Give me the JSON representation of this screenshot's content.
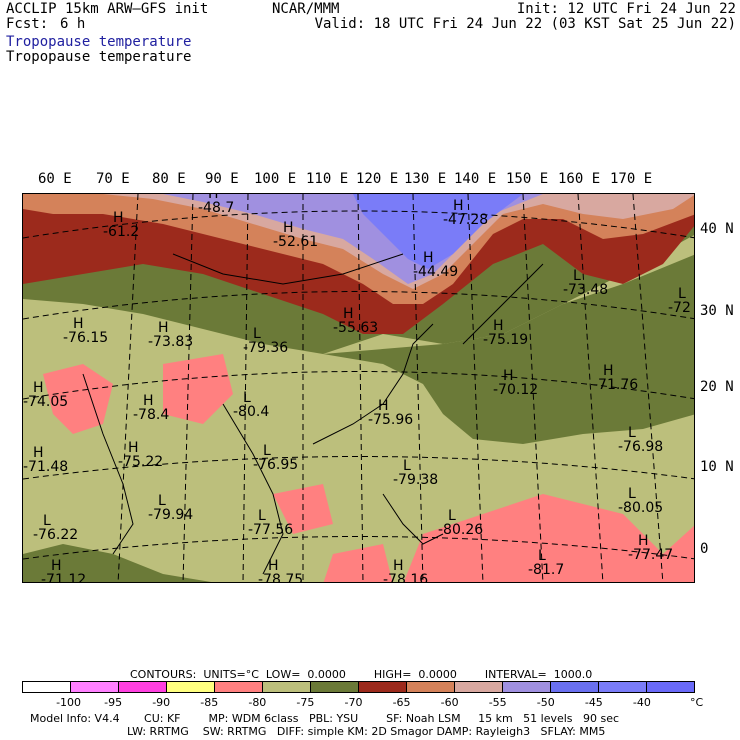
{
  "header": {
    "model_line": "ACCLIP 15km ARW–GFS init",
    "fcst_label": "Fcst:",
    "fcst_value": "6 h",
    "org": "NCAR/MMM",
    "init": "Init: 12 UTC Fri 24 Jun 22",
    "valid": "Valid: 18 UTC Fri 24 Jun 22 (03 KST Sat 25 Jun 22)",
    "field_1": "Tropopause temperature",
    "field_2": "Tropopause temperature",
    "field_1_color": "#2020a0"
  },
  "axes": {
    "lon_labels": [
      "60 E",
      "70 E",
      "80 E",
      "90 E",
      "100 E",
      "110 E",
      "120 E",
      "130 E",
      "140 E",
      "150 E",
      "160 E",
      "170 E"
    ],
    "lat_labels": [
      "40 N",
      "30 N",
      "20 N",
      "10 N",
      "0"
    ]
  },
  "map_annotations": [
    {
      "kind": "H",
      "value": "-48.7"
    },
    {
      "kind": "H",
      "value": "-61.2"
    },
    {
      "kind": "H",
      "value": "-52.61"
    },
    {
      "kind": "H",
      "value": "-47.28"
    },
    {
      "kind": "H",
      "value": "-44.49"
    },
    {
      "kind": "L",
      "value": "-73.48"
    },
    {
      "kind": "L",
      "value": "-72"
    },
    {
      "kind": "H",
      "value": "-55.63"
    },
    {
      "kind": "H",
      "value": "-76.15"
    },
    {
      "kind": "H",
      "value": "-73.83"
    },
    {
      "kind": "L",
      "value": "-79.36"
    },
    {
      "kind": "H",
      "value": "-75.19"
    },
    {
      "kind": "H",
      "value": "-70.12"
    },
    {
      "kind": "H",
      "value": "-71.76"
    },
    {
      "kind": "H",
      "value": "-74.05"
    },
    {
      "kind": "H",
      "value": "-78.4"
    },
    {
      "kind": "L",
      "value": "-80.4"
    },
    {
      "kind": "H",
      "value": "-75.96"
    },
    {
      "kind": "L",
      "value": "-76.98"
    },
    {
      "kind": "H",
      "value": "-71.48"
    },
    {
      "kind": "H",
      "value": "-75.22"
    },
    {
      "kind": "L",
      "value": "-76.95"
    },
    {
      "kind": "L",
      "value": "-79.38"
    },
    {
      "kind": "L",
      "value": "-79.94"
    },
    {
      "kind": "L",
      "value": "-77.56"
    },
    {
      "kind": "L",
      "value": "-80.26"
    },
    {
      "kind": "L",
      "value": "-80.05"
    },
    {
      "kind": "L",
      "value": "-76.22"
    },
    {
      "kind": "H",
      "value": "-77.47"
    },
    {
      "kind": "H",
      "value": "-71.12"
    },
    {
      "kind": "H",
      "value": "-78.75"
    },
    {
      "kind": "H",
      "value": "-78.16"
    },
    {
      "kind": "L",
      "value": "-81.7"
    }
  ],
  "footer": {
    "contours": "CONTOURS:  UNITS=°C  LOW=  0.0000        HIGH=  0.0000        INTERVAL=  1000.0",
    "model_info": "Model Info: V4.4       CU: KF        MP: WDM 6class   PBL: YSU        SF: Noah LSM     15 km   51 levels   90 sec",
    "model_info_2": "LW: RRTMG    SW: RRTMG   DIFF: simple KM: 2D Smagor DAMP: Rayleigh3   SFLAY: MM5",
    "unit": "°C"
  },
  "colorbar": {
    "colors": [
      "#ffffff",
      "#ff80ff",
      "#ff40e0",
      "#ffff80",
      "#ff8080",
      "#bcbf7c",
      "#6b7a38",
      "#9c2a1c",
      "#d4825a",
      "#d8a8a0",
      "#a090e0",
      "#6a70f0",
      "#7a7cf8",
      "#6a6af8"
    ],
    "labels": [
      "-100",
      "-95",
      "-90",
      "-85",
      "-80",
      "-75",
      "-70",
      "-65",
      "-60",
      "-55",
      "-50",
      "-45",
      "-40"
    ]
  }
}
